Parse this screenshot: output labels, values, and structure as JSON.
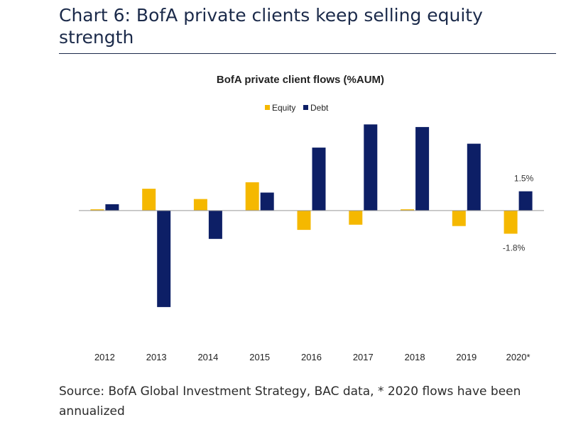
{
  "header": {
    "title": "Chart 6: BofA private clients keep selling equity strength"
  },
  "footer": {
    "source": "Source: BofA Global Investment Strategy, BAC data, * 2020 flows have been annualized"
  },
  "colors": {
    "equity": "#f5b800",
    "debt": "#0d1f66",
    "header_rule": "#1b2a4a"
  },
  "chart_data": {
    "type": "bar",
    "title": "BofA private client flows (%AUM)",
    "xlabel": "",
    "ylabel": "",
    "categories": [
      "2012",
      "2013",
      "2014",
      "2015",
      "2016",
      "2017",
      "2018",
      "2019",
      "2020*"
    ],
    "series": [
      {
        "name": "Equity",
        "values": [
          0.1,
          1.7,
          0.9,
          2.2,
          -1.5,
          -1.1,
          0.1,
          -1.2,
          -1.8
        ]
      },
      {
        "name": "Debt",
        "values": [
          0.5,
          -7.5,
          -2.2,
          1.4,
          4.9,
          6.7,
          6.5,
          5.2,
          1.5
        ]
      }
    ],
    "ylim": [
      -8,
      7
    ],
    "annotations": [
      {
        "category": "2020*",
        "series": "Debt",
        "text": "1.5%"
      },
      {
        "category": "2020*",
        "series": "Equity",
        "text": "-1.8%"
      }
    ],
    "legend_position": "top-center",
    "grid": false
  }
}
